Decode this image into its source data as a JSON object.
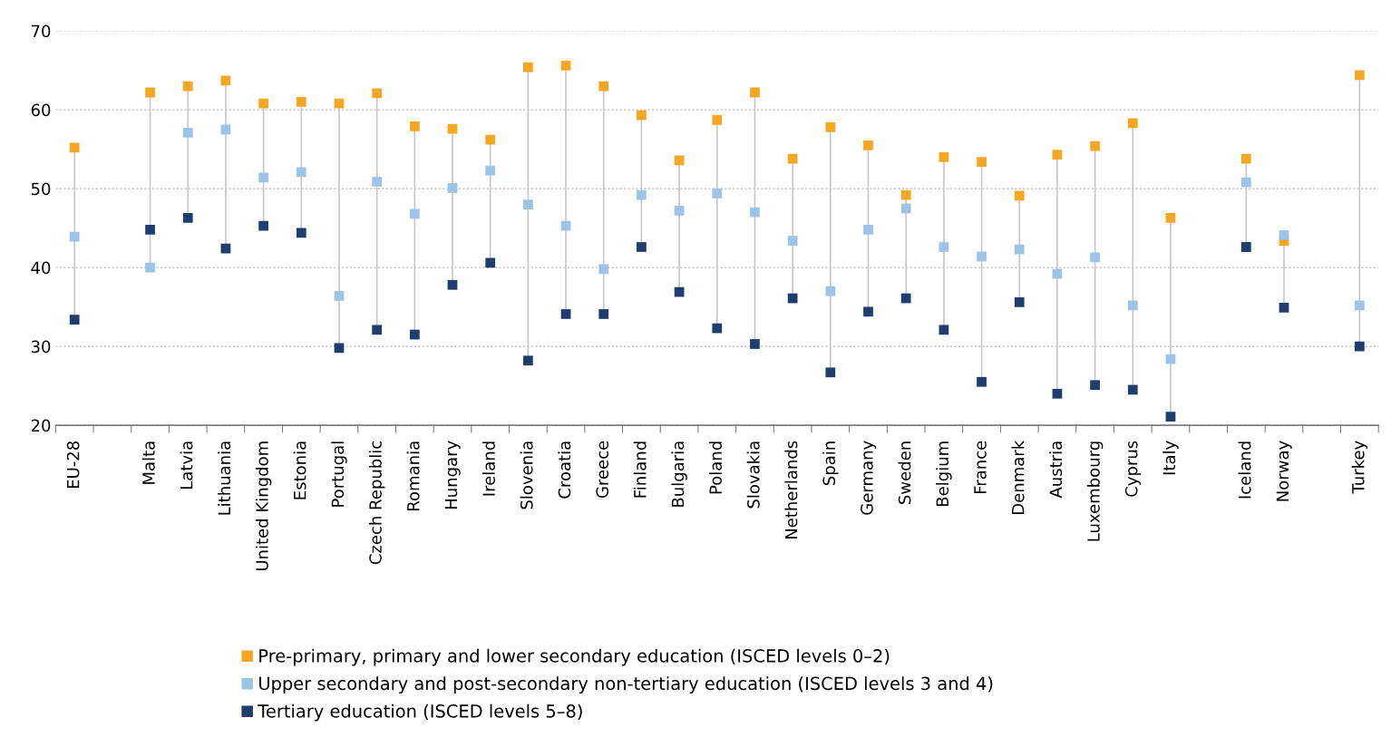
{
  "chart_data": {
    "type": "scatter",
    "categories": [
      "EU-28",
      null,
      "Malta",
      "Latvia",
      "Lithuania",
      "United Kingdom",
      "Estonia",
      "Portugal",
      "Czech Republic",
      "Romania",
      "Hungary",
      "Ireland",
      "Slovenia",
      "Croatia",
      "Greece",
      "Finland",
      "Bulgaria",
      "Poland",
      "Slovakia",
      "Netherlands",
      "Spain",
      "Germany",
      "Sweden",
      "Belgium",
      "France",
      "Denmark",
      "Austria",
      "Luxembourg",
      "Cyprus",
      "Italy",
      null,
      "Iceland",
      "Norway",
      null,
      "Turkey"
    ],
    "series": [
      {
        "name": "Pre-primary, primary and lower secondary education (ISCED levels 0–2)",
        "color": "#f5a623",
        "values": [
          55.2,
          null,
          62.2,
          63.0,
          63.7,
          60.8,
          61.0,
          60.8,
          62.1,
          57.9,
          57.6,
          56.2,
          65.4,
          65.6,
          63.0,
          59.3,
          53.6,
          58.7,
          62.2,
          53.8,
          57.8,
          55.5,
          49.2,
          54.0,
          53.4,
          49.1,
          54.3,
          55.4,
          58.3,
          46.3,
          null,
          53.8,
          43.4,
          null,
          64.4
        ]
      },
      {
        "name": "Upper secondary and post-secondary non-tertiary education (ISCED levels 3 and 4)",
        "color": "#9dc3e6",
        "values": [
          43.9,
          null,
          40.0,
          57.1,
          57.5,
          51.4,
          52.1,
          36.4,
          50.9,
          46.8,
          50.1,
          52.3,
          48.0,
          45.3,
          39.8,
          49.2,
          47.2,
          49.4,
          47.0,
          43.4,
          37.0,
          44.8,
          47.5,
          42.6,
          41.4,
          42.3,
          39.2,
          41.3,
          35.2,
          28.4,
          null,
          50.8,
          44.1,
          null,
          35.2
        ]
      },
      {
        "name": "Tertiary education (ISCED levels 5–8)",
        "color": "#1f3e6e",
        "values": [
          33.4,
          null,
          44.8,
          46.3,
          42.4,
          45.3,
          44.4,
          29.8,
          32.1,
          31.5,
          37.8,
          40.6,
          28.2,
          34.1,
          34.1,
          42.6,
          36.9,
          32.3,
          30.3,
          36.1,
          26.7,
          34.4,
          36.1,
          32.1,
          25.5,
          35.6,
          24.0,
          25.1,
          24.5,
          21.1,
          null,
          42.6,
          34.9,
          null,
          30.0
        ]
      }
    ],
    "ylim": [
      20,
      70
    ],
    "yticks": [
      20,
      30,
      40,
      50,
      60,
      70
    ],
    "grid": "y",
    "legend": "bottom",
    "marker": "square"
  }
}
